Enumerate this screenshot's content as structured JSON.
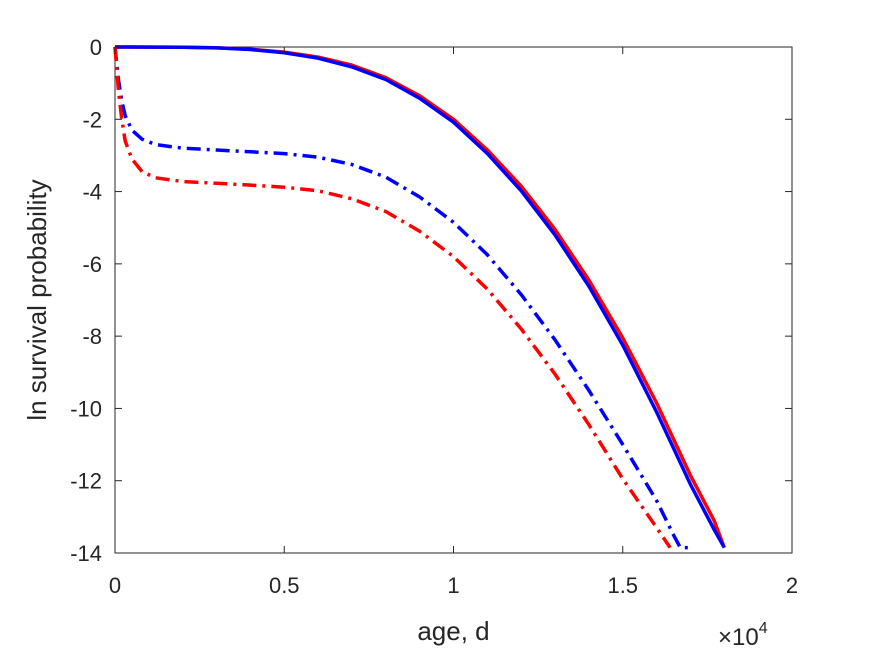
{
  "chart_data": {
    "type": "line",
    "title": "",
    "xlabel": "age, d",
    "ylabel": "ln survival probability",
    "x_multiplier": {
      "base": "×10",
      "exponent": "4"
    },
    "xlim": [
      0,
      2
    ],
    "ylim": [
      -14,
      0
    ],
    "x_ticks": [
      "0",
      "0.5",
      "1",
      "1.5",
      "2"
    ],
    "y_ticks": [
      "0",
      "-2",
      "-4",
      "-6",
      "-8",
      "-10",
      "-12",
      "-14"
    ],
    "x_tick_values": [
      0,
      0.5,
      1,
      1.5,
      2
    ],
    "y_tick_values": [
      0,
      -2,
      -4,
      -6,
      -8,
      -10,
      -12,
      -14
    ],
    "grid": false,
    "legend": "none",
    "series": [
      {
        "color": "#ff0000",
        "style": "solid",
        "points": [
          [
            0,
            0
          ],
          [
            0.2,
            -0.005
          ],
          [
            0.3,
            -0.02
          ],
          [
            0.4,
            -0.06
          ],
          [
            0.5,
            -0.14
          ],
          [
            0.6,
            -0.28
          ],
          [
            0.7,
            -0.5
          ],
          [
            0.8,
            -0.85
          ],
          [
            0.9,
            -1.35
          ],
          [
            1.0,
            -2.0
          ],
          [
            1.1,
            -2.85
          ],
          [
            1.2,
            -3.85
          ],
          [
            1.3,
            -5.05
          ],
          [
            1.4,
            -6.45
          ],
          [
            1.5,
            -8.05
          ],
          [
            1.6,
            -9.85
          ],
          [
            1.7,
            -11.85
          ],
          [
            1.77,
            -13.1
          ],
          [
            1.8,
            -13.85
          ]
        ]
      },
      {
        "color": "#0000ff",
        "style": "solid",
        "points": [
          [
            0,
            0
          ],
          [
            0.2,
            -0.005
          ],
          [
            0.3,
            -0.025
          ],
          [
            0.4,
            -0.07
          ],
          [
            0.5,
            -0.16
          ],
          [
            0.6,
            -0.31
          ],
          [
            0.7,
            -0.55
          ],
          [
            0.8,
            -0.9
          ],
          [
            0.9,
            -1.42
          ],
          [
            1.0,
            -2.08
          ],
          [
            1.1,
            -2.95
          ],
          [
            1.2,
            -3.98
          ],
          [
            1.3,
            -5.2
          ],
          [
            1.4,
            -6.62
          ],
          [
            1.5,
            -8.25
          ],
          [
            1.6,
            -10.1
          ],
          [
            1.7,
            -12.1
          ],
          [
            1.77,
            -13.35
          ],
          [
            1.8,
            -13.85
          ]
        ]
      },
      {
        "color": "#0000ff",
        "style": "dashdot",
        "points": [
          [
            0,
            0
          ],
          [
            0.01,
            -0.9
          ],
          [
            0.02,
            -1.5
          ],
          [
            0.03,
            -1.9
          ],
          [
            0.05,
            -2.3
          ],
          [
            0.08,
            -2.55
          ],
          [
            0.12,
            -2.7
          ],
          [
            0.2,
            -2.8
          ],
          [
            0.3,
            -2.85
          ],
          [
            0.4,
            -2.9
          ],
          [
            0.5,
            -2.95
          ],
          [
            0.6,
            -3.05
          ],
          [
            0.7,
            -3.25
          ],
          [
            0.8,
            -3.6
          ],
          [
            0.9,
            -4.15
          ],
          [
            1.0,
            -4.85
          ],
          [
            1.1,
            -5.75
          ],
          [
            1.2,
            -6.85
          ],
          [
            1.3,
            -8.1
          ],
          [
            1.4,
            -9.5
          ],
          [
            1.5,
            -11.0
          ],
          [
            1.6,
            -12.55
          ],
          [
            1.65,
            -13.5
          ],
          [
            1.67,
            -13.85
          ],
          [
            1.7,
            -13.85
          ]
        ]
      },
      {
        "color": "#ff0000",
        "style": "dashdot",
        "points": [
          [
            0,
            0
          ],
          [
            0.01,
            -1.2
          ],
          [
            0.02,
            -2.0
          ],
          [
            0.03,
            -2.6
          ],
          [
            0.05,
            -3.1
          ],
          [
            0.08,
            -3.45
          ],
          [
            0.12,
            -3.62
          ],
          [
            0.2,
            -3.72
          ],
          [
            0.3,
            -3.77
          ],
          [
            0.4,
            -3.82
          ],
          [
            0.5,
            -3.88
          ],
          [
            0.6,
            -3.98
          ],
          [
            0.7,
            -4.2
          ],
          [
            0.8,
            -4.55
          ],
          [
            0.9,
            -5.1
          ],
          [
            1.0,
            -5.8
          ],
          [
            1.1,
            -6.7
          ],
          [
            1.2,
            -7.8
          ],
          [
            1.3,
            -9.05
          ],
          [
            1.4,
            -10.45
          ],
          [
            1.5,
            -11.95
          ],
          [
            1.6,
            -13.3
          ],
          [
            1.64,
            -13.85
          ]
        ]
      }
    ]
  }
}
